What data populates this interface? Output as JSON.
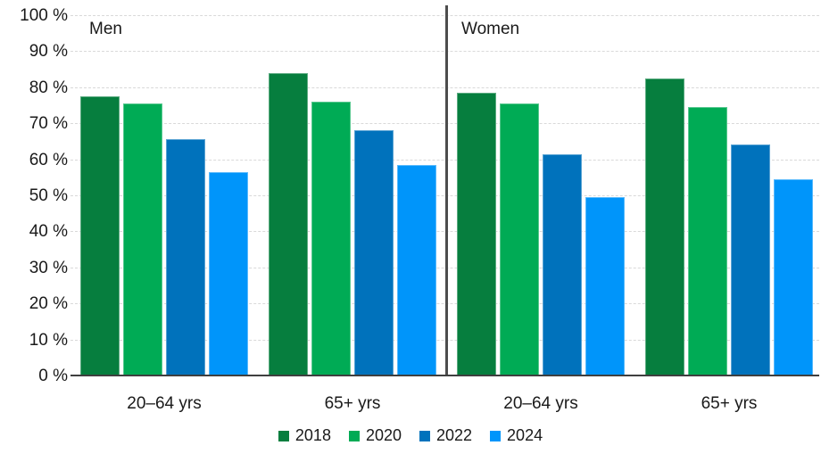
{
  "chart_data": {
    "type": "bar",
    "title": "",
    "unit": "%",
    "ylim": [
      0,
      100
    ],
    "ytick_step": 10,
    "ytick_labels": [
      "0 %",
      "10 %",
      "20 %",
      "30 %",
      "40 %",
      "50 %",
      "60 %",
      "70 %",
      "80 %",
      "90 %",
      "100 %"
    ],
    "grid": true,
    "legend_position": "bottom",
    "panels": [
      {
        "label": "Men"
      },
      {
        "label": "Women"
      }
    ],
    "series": [
      {
        "name": "2018",
        "color": "#067e3e"
      },
      {
        "name": "2020",
        "color": "#00ab55"
      },
      {
        "name": "2022",
        "color": "#0072bc"
      },
      {
        "name": "2024",
        "color": "#0095fa"
      }
    ],
    "groups": [
      {
        "panel": "Men",
        "category": "20–64 yrs",
        "values": [
          77.5,
          75.5,
          65.5,
          56.5
        ]
      },
      {
        "panel": "Men",
        "category": "65+ yrs",
        "values": [
          84.0,
          76.0,
          68.0,
          58.5
        ]
      },
      {
        "panel": "Women",
        "category": "20–64 yrs",
        "values": [
          78.5,
          75.5,
          61.5,
          49.5
        ]
      },
      {
        "panel": "Women",
        "category": "65+ yrs",
        "values": [
          82.5,
          74.5,
          64.0,
          54.5
        ]
      }
    ]
  }
}
